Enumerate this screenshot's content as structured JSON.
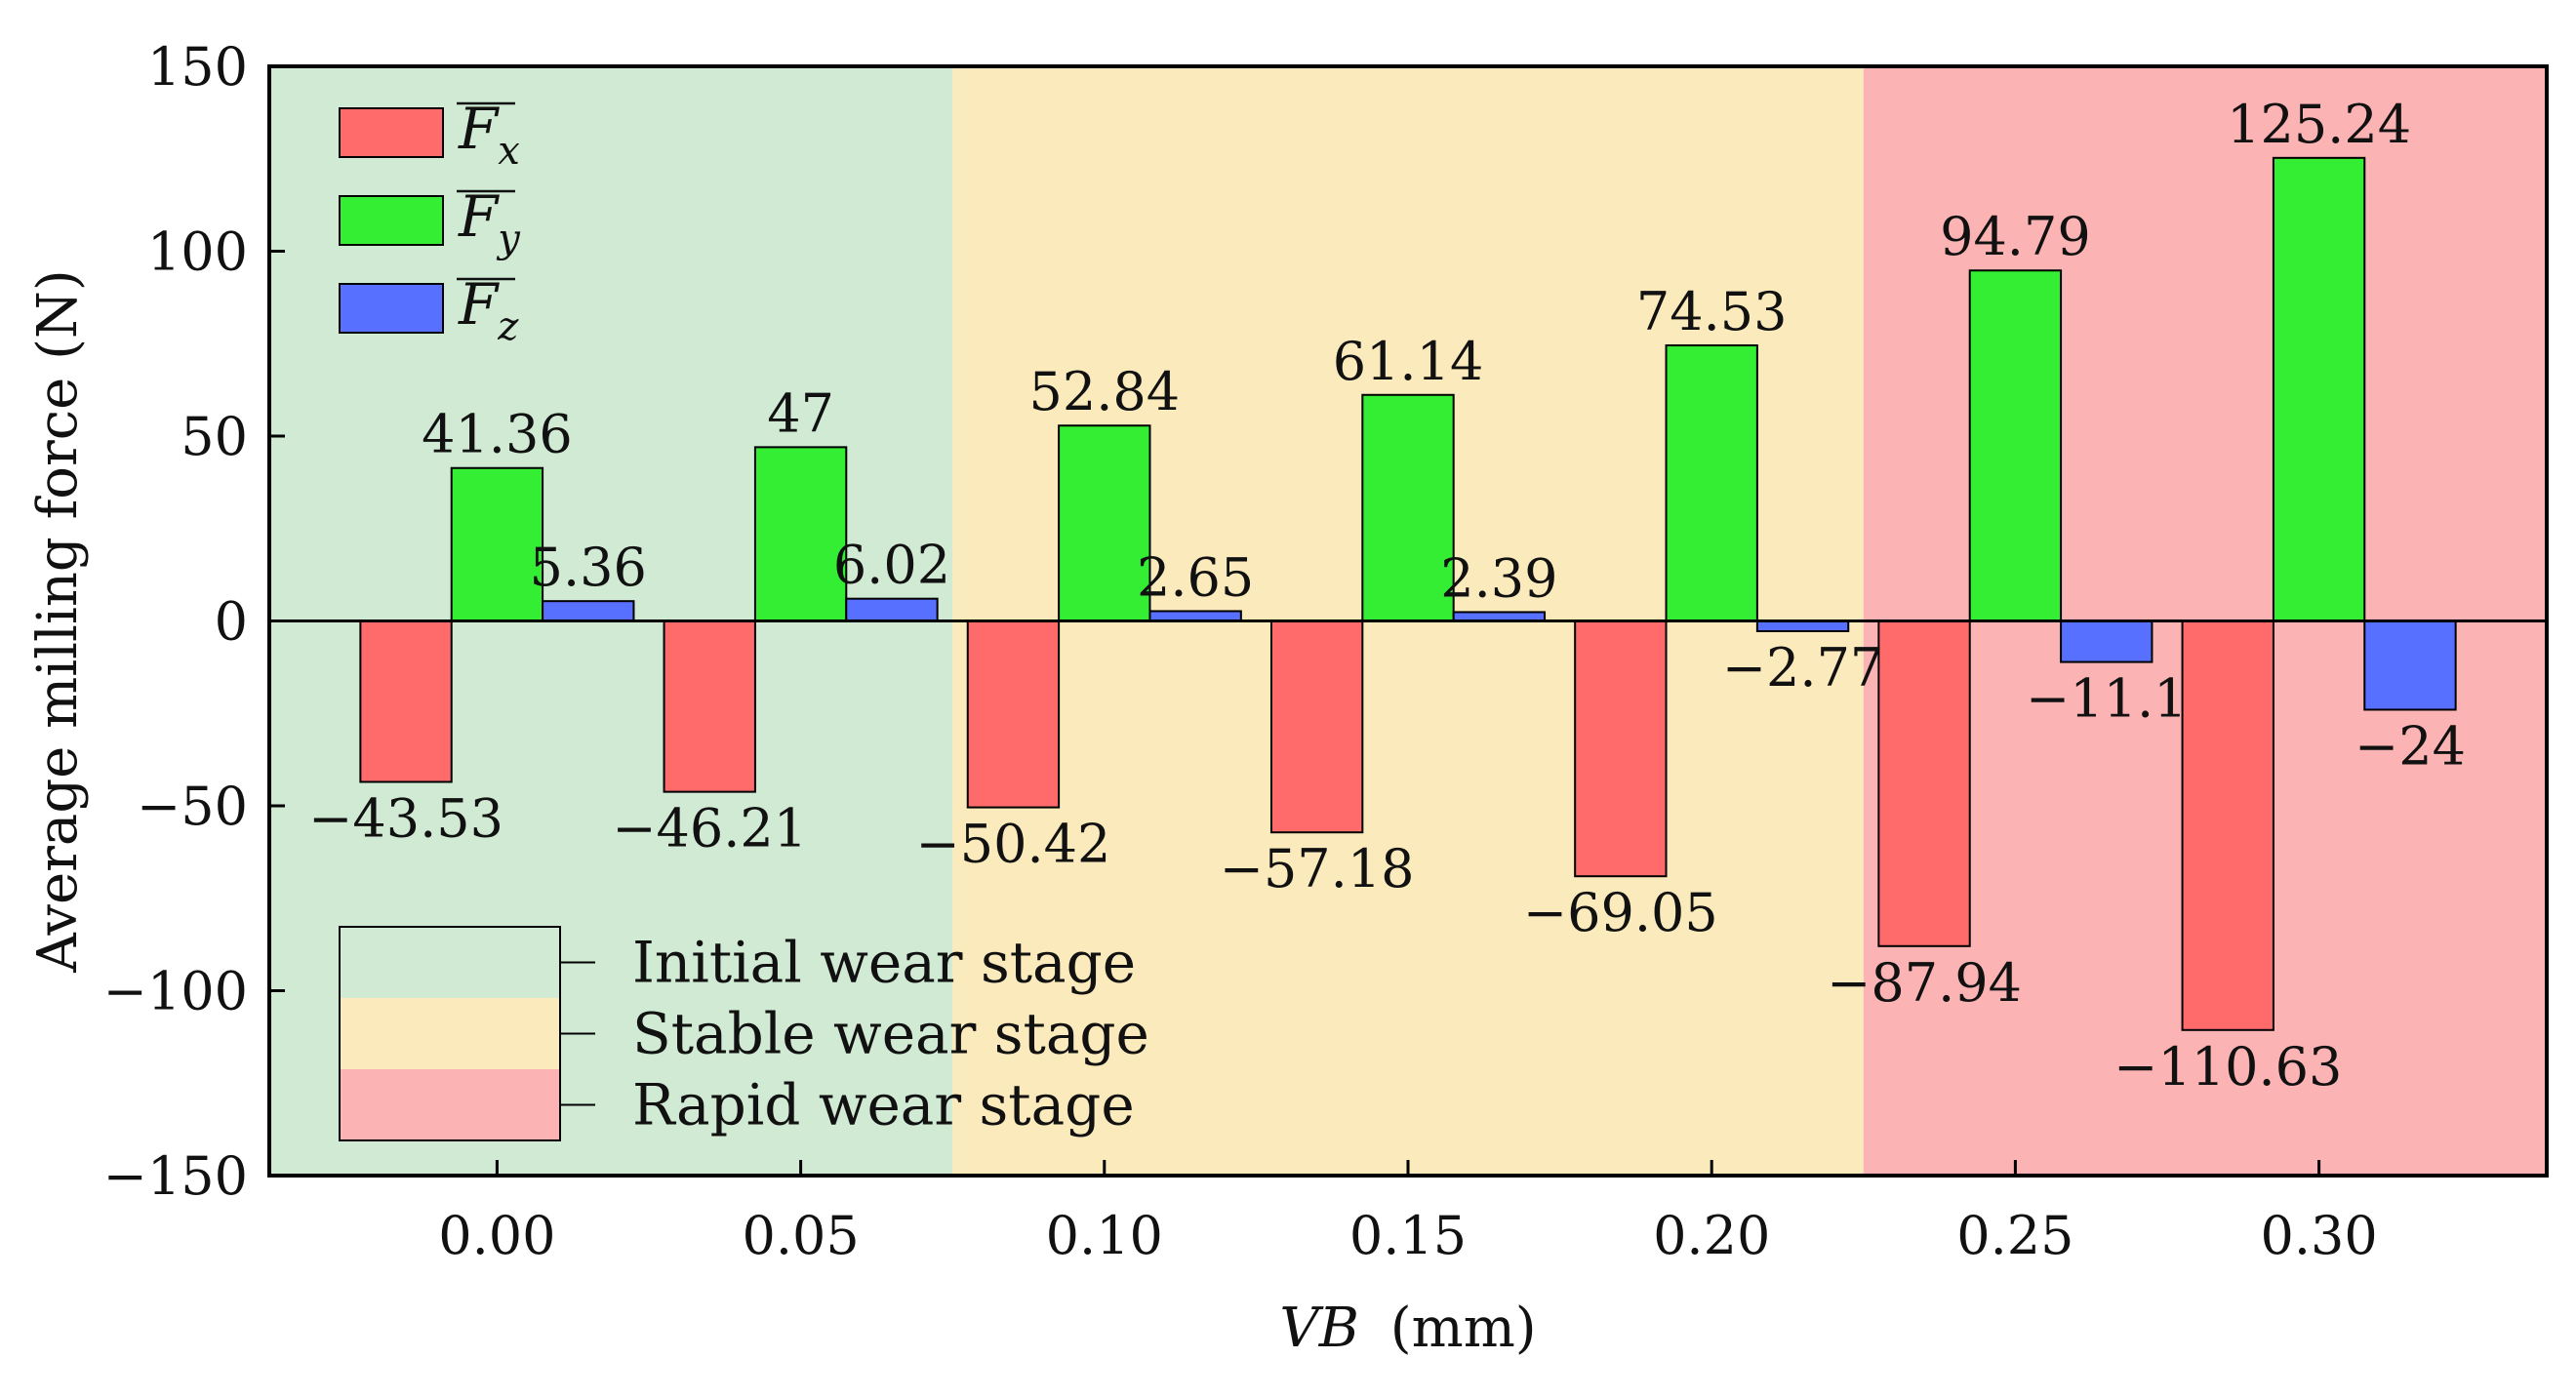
{
  "chart_data": {
    "type": "bar",
    "title": "",
    "xlabel_var": "VB",
    "xlabel_unit": "(mm)",
    "ylabel": "Average milling force (N)",
    "categories": [
      "0.00",
      "0.05",
      "0.10",
      "0.15",
      "0.20",
      "0.25",
      "0.30"
    ],
    "ylim": [
      -150,
      150
    ],
    "yticks": [
      150,
      100,
      50,
      0,
      -50,
      -100,
      -150
    ],
    "ytick_labels": [
      "150",
      "100",
      "50",
      "0",
      "−50",
      "−100",
      "−150"
    ],
    "series": [
      {
        "name": "Fx",
        "base": "F",
        "sub": "x",
        "color": "#ff6b6b",
        "values": [
          -43.53,
          -46.21,
          -50.42,
          -57.18,
          -69.05,
          -87.94,
          -110.63
        ],
        "labels": [
          "−43.53",
          "−46.21",
          "−50.42",
          "−57.18",
          "−69.05",
          "−87.94",
          "−110.63"
        ]
      },
      {
        "name": "Fy",
        "base": "F",
        "sub": "y",
        "color": "#33ee33",
        "values": [
          41.36,
          47,
          52.84,
          61.14,
          74.53,
          94.79,
          125.24
        ],
        "labels": [
          "41.36",
          "47",
          "52.84",
          "61.14",
          "74.53",
          "94.79",
          "125.24"
        ]
      },
      {
        "name": "Fz",
        "base": "F",
        "sub": "z",
        "color": "#5870ff",
        "values": [
          5.36,
          6.02,
          2.65,
          2.39,
          -2.77,
          -11.1,
          -24
        ],
        "labels": [
          "5.36",
          "6.02",
          "2.65",
          "2.39",
          "−2.77",
          "−11.1",
          "−24"
        ]
      }
    ],
    "stages": [
      {
        "name": "Initial wear stage",
        "color": "#d0ead4",
        "x_from": -0.0375,
        "x_to": 0.075
      },
      {
        "name": "Stable wear stage",
        "color": "#fbeabb",
        "x_from": 0.075,
        "x_to": 0.225
      },
      {
        "name": "Rapid wear stage",
        "color": "#fbb3b3",
        "x_from": 0.225,
        "x_to": 0.3375
      }
    ],
    "xlim": [
      -0.0375,
      0.3375
    ],
    "series_legend_position": "top-left",
    "stage_legend_position": "bottom-left",
    "grid": false
  }
}
